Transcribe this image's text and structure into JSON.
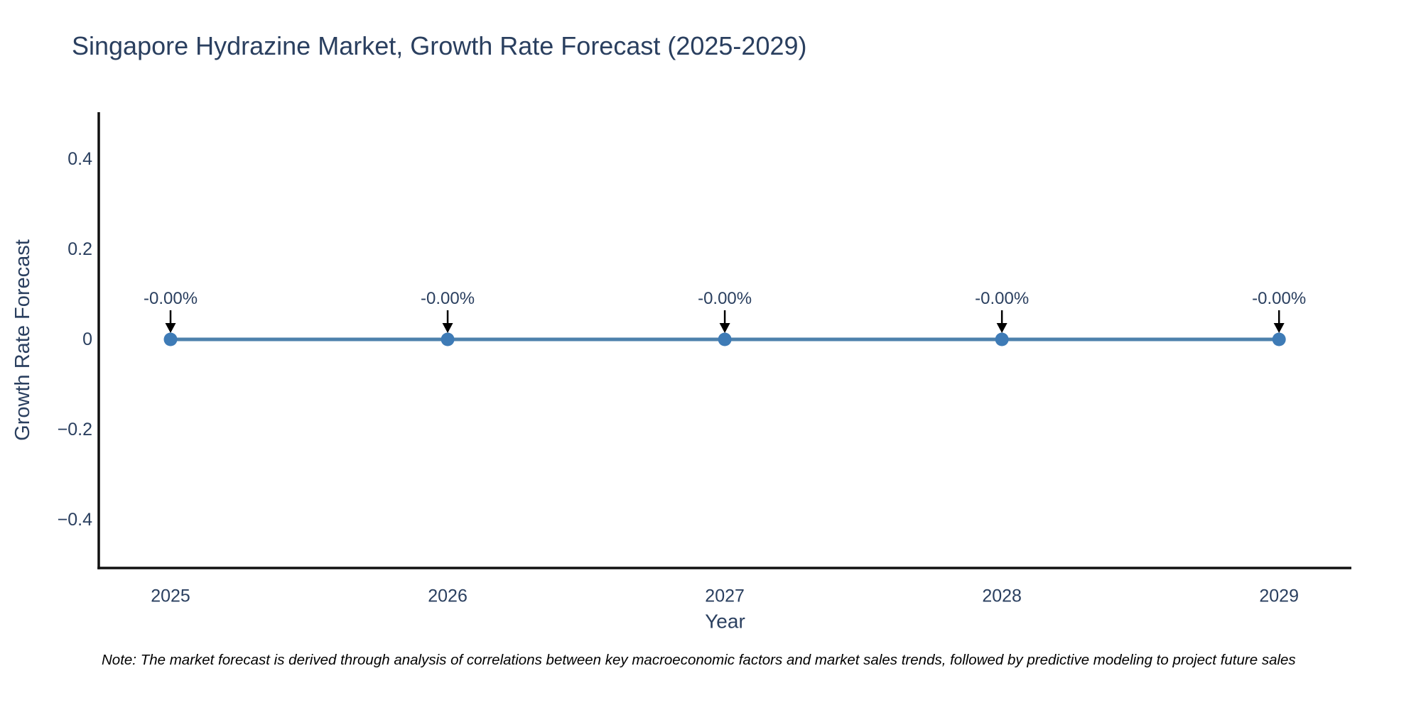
{
  "page": {
    "background": "#ffffff"
  },
  "chart": {
    "title": "Singapore Hydrazine Market, Growth Rate Forecast (2025-2029)",
    "note": "Note: The market forecast is derived through analysis of correlations between key macroeconomic factors and market sales trends, followed by predictive modeling to project future sales"
  },
  "chart_data": {
    "type": "line",
    "title": "Singapore Hydrazine Market, Growth Rate Forecast (2025-2029)",
    "xlabel": "Year",
    "ylabel": "Growth Rate Forecast",
    "x": [
      2025,
      2026,
      2027,
      2028,
      2029
    ],
    "series": [
      {
        "name": "Growth Rate Forecast",
        "values": [
          0,
          0,
          0,
          0,
          0
        ]
      }
    ],
    "point_annotations": [
      "-0.00%",
      "-0.00%",
      "-0.00%",
      "-0.00%",
      "-0.00%"
    ],
    "xticks": [
      {
        "v": 2025,
        "label": "2025"
      },
      {
        "v": 2026,
        "label": "2026"
      },
      {
        "v": 2027,
        "label": "2027"
      },
      {
        "v": 2028,
        "label": "2028"
      },
      {
        "v": 2029,
        "label": "2029"
      }
    ],
    "yticks": [
      {
        "v": 0.4,
        "label": "0.4"
      },
      {
        "v": 0.2,
        "label": "0.2"
      },
      {
        "v": 0,
        "label": "0"
      },
      {
        "v": -0.2,
        "label": "−0.2"
      },
      {
        "v": -0.4,
        "label": "−0.4"
      }
    ],
    "xlim": [
      2024.741,
      2029.261
    ],
    "ylim": [
      -0.5075,
      0.5043
    ],
    "grid": false,
    "legend": false,
    "colors": {
      "line": "#4d81ac",
      "marker": "#3e7bb6",
      "axis": "#111111",
      "text": "#2a3f5f",
      "arrow": "#000000",
      "note": "#000000"
    }
  }
}
